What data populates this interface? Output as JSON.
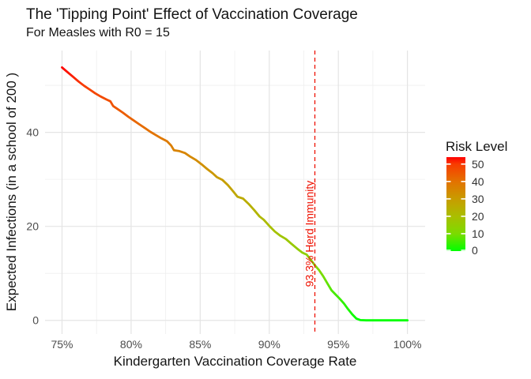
{
  "chart_data": {
    "type": "line",
    "title": "The 'Tipping Point' Effect of Vaccination Coverage",
    "subtitle": "For Measles with R0 = 15",
    "xlabel": "Kindergarten Vaccination Coverage Rate",
    "ylabel": "Expected Infections (in a school of 200 )",
    "xlim": [
      73.77,
      101.28
    ],
    "ylim": [
      -2.9,
      57.4
    ],
    "x_ticks": [
      {
        "value": 75,
        "label": "75%"
      },
      {
        "value": 80,
        "label": "80%"
      },
      {
        "value": 85,
        "label": "85%"
      },
      {
        "value": 90,
        "label": "90%"
      },
      {
        "value": 95,
        "label": "95%"
      },
      {
        "value": 100,
        "label": "100%"
      }
    ],
    "y_ticks": [
      {
        "value": 0,
        "label": "0"
      },
      {
        "value": 20,
        "label": "20"
      },
      {
        "value": 40,
        "label": "40"
      }
    ],
    "x_minor_gridlines": [
      77.5,
      82.5,
      87.5,
      92.5,
      97.5
    ],
    "y_minor_gridlines": [
      10,
      30,
      50
    ],
    "grid": "on",
    "series": [
      {
        "name": "expected-infections",
        "points": [
          [
            75.0,
            53.8
          ],
          [
            75.4,
            52.8
          ],
          [
            75.8,
            51.8
          ],
          [
            76.2,
            50.8
          ],
          [
            76.6,
            49.9
          ],
          [
            77.0,
            49.1
          ],
          [
            77.4,
            48.3
          ],
          [
            77.8,
            47.6
          ],
          [
            78.2,
            47.0
          ],
          [
            78.5,
            46.6
          ],
          [
            78.7,
            45.6
          ],
          [
            79.0,
            45.0
          ],
          [
            79.4,
            44.2
          ],
          [
            79.8,
            43.3
          ],
          [
            80.2,
            42.5
          ],
          [
            80.6,
            41.7
          ],
          [
            81.0,
            40.9
          ],
          [
            81.4,
            40.1
          ],
          [
            81.8,
            39.4
          ],
          [
            82.2,
            38.7
          ],
          [
            82.6,
            38.1
          ],
          [
            82.9,
            37.2
          ],
          [
            83.1,
            36.2
          ],
          [
            83.5,
            36.0
          ],
          [
            83.9,
            35.6
          ],
          [
            84.3,
            34.8
          ],
          [
            84.7,
            34.1
          ],
          [
            85.1,
            33.2
          ],
          [
            85.5,
            32.2
          ],
          [
            85.9,
            31.3
          ],
          [
            86.2,
            30.5
          ],
          [
            86.6,
            29.9
          ],
          [
            87.0,
            28.8
          ],
          [
            87.4,
            27.4
          ],
          [
            87.7,
            26.3
          ],
          [
            88.1,
            25.9
          ],
          [
            88.5,
            24.8
          ],
          [
            88.9,
            23.5
          ],
          [
            89.3,
            22.1
          ],
          [
            89.6,
            21.4
          ],
          [
            90.0,
            20.1
          ],
          [
            90.4,
            18.9
          ],
          [
            90.8,
            18.0
          ],
          [
            91.2,
            17.3
          ],
          [
            91.6,
            16.3
          ],
          [
            92.0,
            15.3
          ],
          [
            92.4,
            14.4
          ],
          [
            92.7,
            14.0
          ],
          [
            93.0,
            12.9
          ],
          [
            93.3,
            11.7
          ],
          [
            93.6,
            10.7
          ],
          [
            93.9,
            9.4
          ],
          [
            94.2,
            7.9
          ],
          [
            94.5,
            6.4
          ],
          [
            94.8,
            5.5
          ],
          [
            95.1,
            4.6
          ],
          [
            95.4,
            3.6
          ],
          [
            95.7,
            2.4
          ],
          [
            96.0,
            1.3
          ],
          [
            96.3,
            0.4
          ],
          [
            96.6,
            0.05
          ],
          [
            97.0,
            0.0
          ],
          [
            98.0,
            0.0
          ],
          [
            99.0,
            0.0
          ],
          [
            100.0,
            0.0
          ]
        ]
      }
    ],
    "color_scale": {
      "max": 54,
      "stops": [
        {
          "value": 0,
          "color": "#00ff00"
        },
        {
          "value": 10,
          "color": "#7cdb00"
        },
        {
          "value": 20,
          "color": "#aabe00"
        },
        {
          "value": 30,
          "color": "#c89c00"
        },
        {
          "value": 40,
          "color": "#e37200"
        },
        {
          "value": 50,
          "color": "#f83c00"
        },
        {
          "value": 54,
          "color": "#ff0000"
        }
      ]
    },
    "legend": {
      "title": "Risk Level",
      "position": "right",
      "ticks": [
        {
          "value": 0,
          "label": "0"
        },
        {
          "value": 10,
          "label": "10"
        },
        {
          "value": 20,
          "label": "20"
        },
        {
          "value": 30,
          "label": "30"
        },
        {
          "value": 40,
          "label": "40"
        },
        {
          "value": 50,
          "label": "50"
        }
      ]
    },
    "annotation": {
      "x": 93.3,
      "label": "93.3% Herd Immunity",
      "line_style": "dashed",
      "color": "#ee1100"
    }
  },
  "colors": {
    "background": "#ffffff",
    "grid_major": "#e4e4e4",
    "grid_minor": "#efefef",
    "axis_text": "#4d4d4d",
    "text": "#141414",
    "legend_text": "#333333",
    "legend_tick": "#ffffff"
  }
}
